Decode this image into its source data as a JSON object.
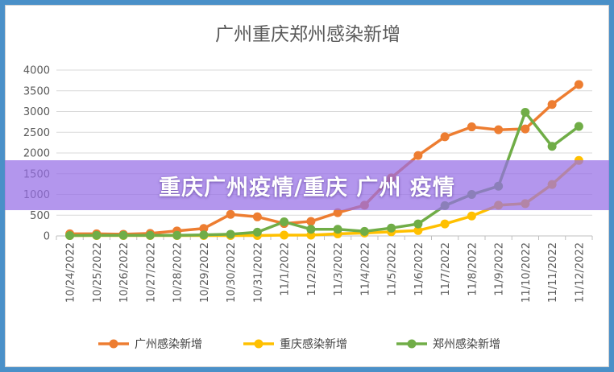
{
  "chart_data": {
    "type": "line",
    "title": "广州重庆郑州感染新增",
    "xlabel": "",
    "ylabel": "",
    "categories": [
      "10/24/2022",
      "10/25/2022",
      "10/26/2022",
      "10/27/2022",
      "10/28/2022",
      "10/29/2022",
      "10/30/2022",
      "10/31/2022",
      "11/1/2022",
      "11/2/2022",
      "11/3/2022",
      "11/4/2022",
      "11/5/2022",
      "11/6/2022",
      "11/7/2022",
      "11/8/2022",
      "11/9/2022",
      "11/10/2022",
      "11/11/2022",
      "11/12/2022"
    ],
    "ylim": [
      0,
      4000
    ],
    "yticks": [
      0,
      500,
      1000,
      1500,
      2000,
      2500,
      3000,
      3500,
      4000
    ],
    "grid": true,
    "legend_position": "bottom",
    "series": [
      {
        "name": "广州感染新增",
        "color": "#ed7d31",
        "values": [
          50,
          50,
          40,
          60,
          120,
          180,
          520,
          460,
          300,
          350,
          560,
          740,
          1400,
          1940,
          2390,
          2630,
          2560,
          2580,
          3170,
          3650
        ]
      },
      {
        "name": "重庆感染新增",
        "color": "#ffc000",
        "values": [
          10,
          10,
          10,
          10,
          10,
          10,
          10,
          10,
          20,
          20,
          50,
          70,
          100,
          130,
          290,
          480,
          740,
          780,
          1240,
          1820
        ]
      },
      {
        "name": "郑州感染新增",
        "color": "#70ad47",
        "values": [
          10,
          15,
          15,
          15,
          15,
          25,
          40,
          90,
          340,
          160,
          160,
          110,
          190,
          290,
          730,
          1000,
          1200,
          2980,
          2160,
          2640
        ]
      }
    ]
  },
  "overlay": {
    "banner_text": "重庆广州疫情/重庆 广州 疫情",
    "banner_color": "#966ee6"
  }
}
